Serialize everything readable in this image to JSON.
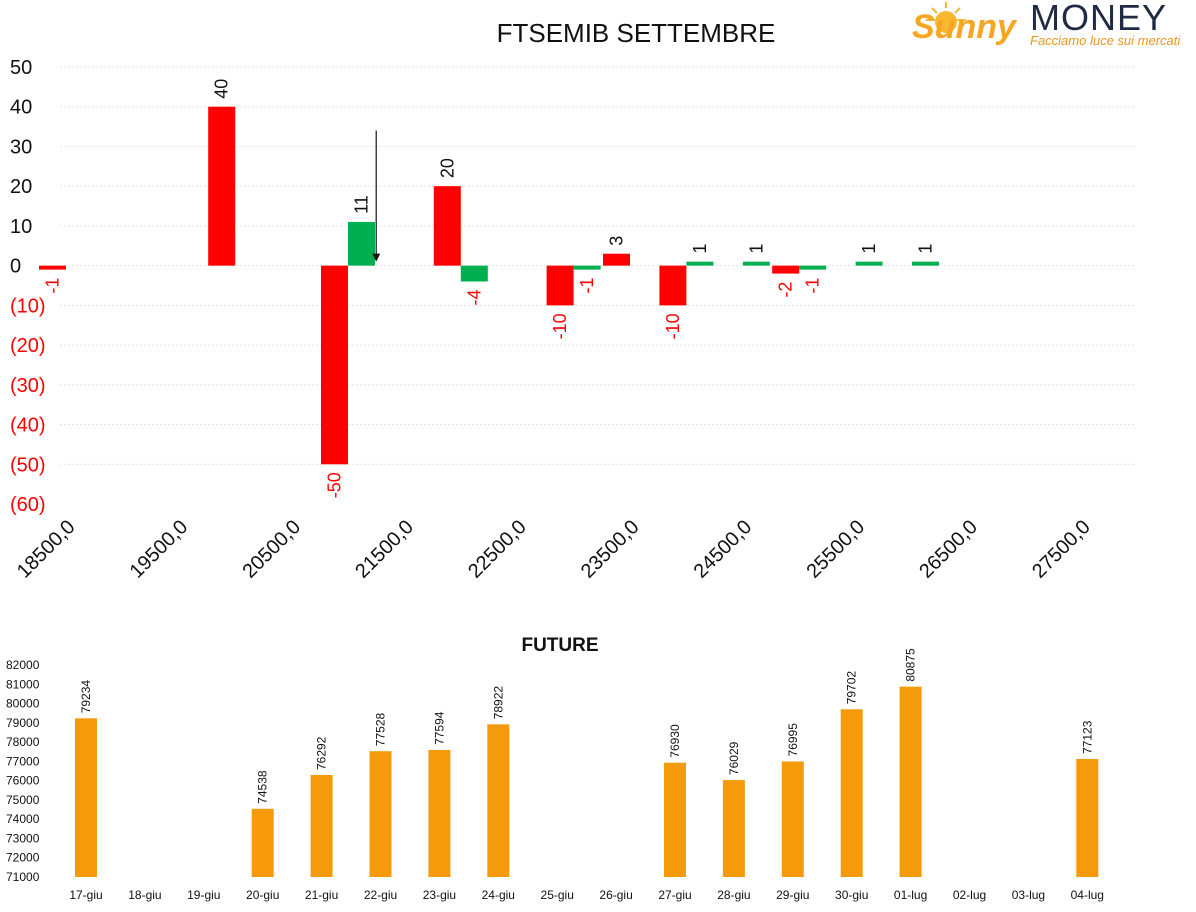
{
  "brand": {
    "script_name": "Sunny",
    "name": "MONEY",
    "tagline": "Facciamo luce sui mercati"
  },
  "colors": {
    "positive": "#00b050",
    "negative": "#ff0000",
    "future_bar": "#f59b0b",
    "neg_axis_label": "#ff0000"
  },
  "chart_data": [
    {
      "type": "bar",
      "title": "FTSEMIB SETTEMBRE",
      "xlabel": "",
      "ylabel": "",
      "ylim": [
        -60,
        50
      ],
      "y_tick_labels": [
        "50",
        "40",
        "30",
        "20",
        "10",
        "0",
        "(10)",
        "(20)",
        "(30)",
        "(40)",
        "(50)",
        "(60)"
      ],
      "x_tick_labels": [
        "18500,0",
        "19500,0",
        "20500,0",
        "21500,0",
        "22500,0",
        "23500,0",
        "24500,0",
        "25500,0",
        "26500,0",
        "27500,0"
      ],
      "series": [
        {
          "color": "positive",
          "points": [
            {
              "strike": 21000,
              "value": 11
            },
            {
              "strike": 22000,
              "value": -4
            },
            {
              "strike": 23000,
              "value": -1
            },
            {
              "strike": 24000,
              "value": 1
            },
            {
              "strike": 24500,
              "value": 1
            },
            {
              "strike": 25000,
              "value": -1
            },
            {
              "strike": 25500,
              "value": 1
            },
            {
              "strike": 26000,
              "value": 1
            }
          ]
        },
        {
          "color": "negative",
          "points": [
            {
              "strike": 18500,
              "value": -1
            },
            {
              "strike": 20000,
              "value": 40
            },
            {
              "strike": 21000,
              "value": -50
            },
            {
              "strike": 22000,
              "value": 20
            },
            {
              "strike": 23000,
              "value": -10
            },
            {
              "strike": 23500,
              "value": 3
            },
            {
              "strike": 24000,
              "value": -10
            },
            {
              "strike": 25000,
              "value": -2
            }
          ]
        }
      ],
      "annotations": [
        {
          "type": "arrow",
          "direction": "down",
          "strike": 21250,
          "from": 34,
          "to": 1
        }
      ],
      "grid": true
    },
    {
      "type": "bar",
      "title": "FUTURE",
      "xlabel": "",
      "ylabel": "",
      "ylim": [
        71000,
        82000
      ],
      "y_ticks": [
        82000,
        81000,
        80000,
        79000,
        78000,
        77000,
        76000,
        75000,
        74000,
        73000,
        72000,
        71000
      ],
      "categories": [
        "17-giu",
        "18-giu",
        "19-giu",
        "20-giu",
        "21-giu",
        "22-giu",
        "23-giu",
        "24-giu",
        "25-giu",
        "26-giu",
        "27-giu",
        "28-giu",
        "29-giu",
        "30-giu",
        "01-lug",
        "02-lug",
        "03-lug",
        "04-lug"
      ],
      "values": [
        79234,
        null,
        null,
        74538,
        76292,
        77528,
        77594,
        78922,
        null,
        null,
        76930,
        76029,
        76995,
        79702,
        80875,
        null,
        null,
        77123
      ],
      "grid": false
    }
  ]
}
